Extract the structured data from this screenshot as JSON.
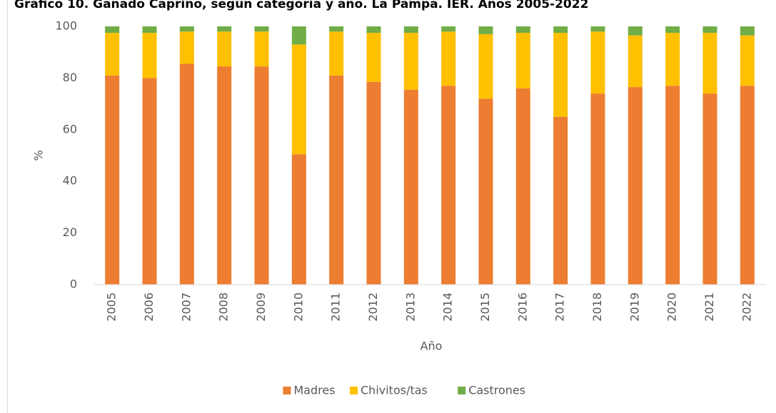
{
  "chart_data": {
    "type": "stacked_bar",
    "title": "Gráfico 10. Ganado Caprino, según categoría y año. La Pampa. IER. Años 2005-2022",
    "y_label": "%",
    "x_label": "Año",
    "categories": [
      "2005",
      "2006",
      "2007",
      "2008",
      "2009",
      "2010",
      "2011",
      "2012",
      "2013",
      "2014",
      "2015",
      "2016",
      "2017",
      "2018",
      "2019",
      "2020",
      "2021",
      "2022"
    ],
    "series": [
      {
        "name": "Madres",
        "color": "#ed7d31",
        "values": [
          81,
          80,
          85.5,
          84.5,
          84.5,
          50.5,
          81,
          78.5,
          75.5,
          77,
          72,
          76,
          65,
          74,
          76.5,
          77,
          74,
          77
        ]
      },
      {
        "name": "Chivitos/tas",
        "color": "#ffc000",
        "values": [
          16.5,
          17.5,
          12.5,
          13.5,
          13.5,
          42.5,
          17,
          19,
          22,
          21,
          25,
          21.5,
          32.5,
          24,
          20,
          20.5,
          23.5,
          19.5
        ]
      },
      {
        "name": "Castrones",
        "color": "#70ad47",
        "values": [
          2.5,
          2.5,
          2,
          2,
          2,
          7,
          2,
          2.5,
          2.5,
          2,
          3,
          2.5,
          2.5,
          2,
          3.5,
          2.5,
          2.5,
          3.5
        ]
      }
    ],
    "ylim": [
      0,
      100
    ],
    "yticks": [
      0,
      20,
      40,
      60,
      80,
      100
    ],
    "grid": false,
    "legend": "bottom"
  }
}
